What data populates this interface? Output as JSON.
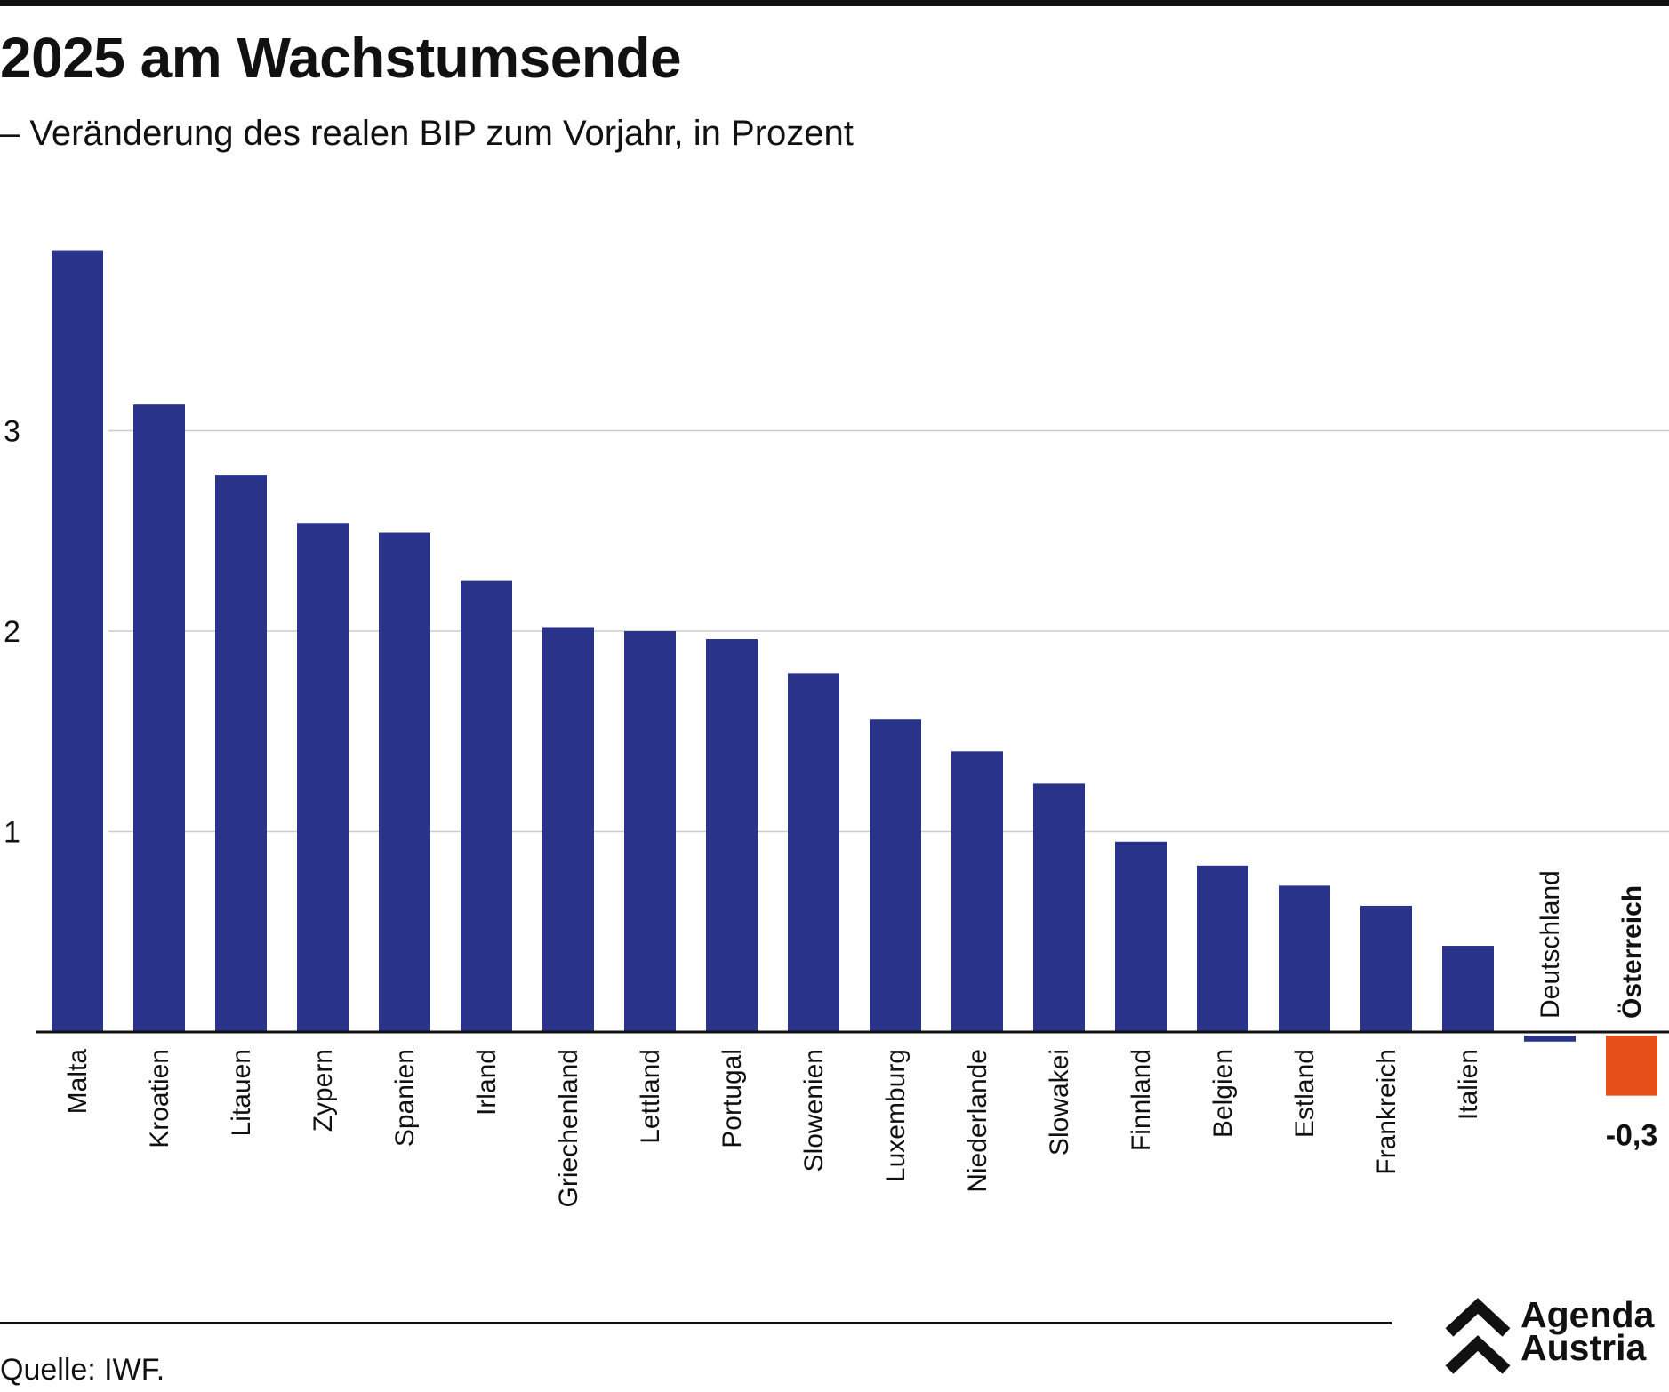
{
  "header": {
    "title": "2025 am Wachstumsende",
    "subtitle": "– Veränderung des realen BIP zum Vorjahr, in Prozent"
  },
  "footer": {
    "source": "Quelle: IWF.",
    "logo_line1": "Agenda",
    "logo_line2": "Austria"
  },
  "colors": {
    "bar": "#283389",
    "highlight": "#e8501a",
    "grid": "#cccccc",
    "axis": "#111111"
  },
  "chart_data": {
    "type": "bar",
    "title": "2025 am Wachstumsende",
    "subtitle": "– Veränderung des realen BIP zum Vorjahr, in Prozent",
    "categories": [
      "Malta",
      "Kroatien",
      "Litauen",
      "Zypern",
      "Spanien",
      "Irland",
      "Griechenland",
      "Lettland",
      "Portugal",
      "Slowenien",
      "Luxemburg",
      "Niederlande",
      "Slowakei",
      "Finnland",
      "Belgien",
      "Estland",
      "Frankreich",
      "Italien",
      "Deutschland",
      "Österreich"
    ],
    "values": [
      3.9,
      3.13,
      2.78,
      2.54,
      2.49,
      2.25,
      2.02,
      2.0,
      1.96,
      1.79,
      1.56,
      1.4,
      1.24,
      0.95,
      0.83,
      0.73,
      0.63,
      0.43,
      -0.03,
      -0.3
    ],
    "highlight": "Österreich",
    "highlight_label": "-0,3",
    "yticks": [
      "1",
      "2",
      "3"
    ],
    "ylim": [
      -0.3,
      4.0
    ],
    "grid": true
  }
}
